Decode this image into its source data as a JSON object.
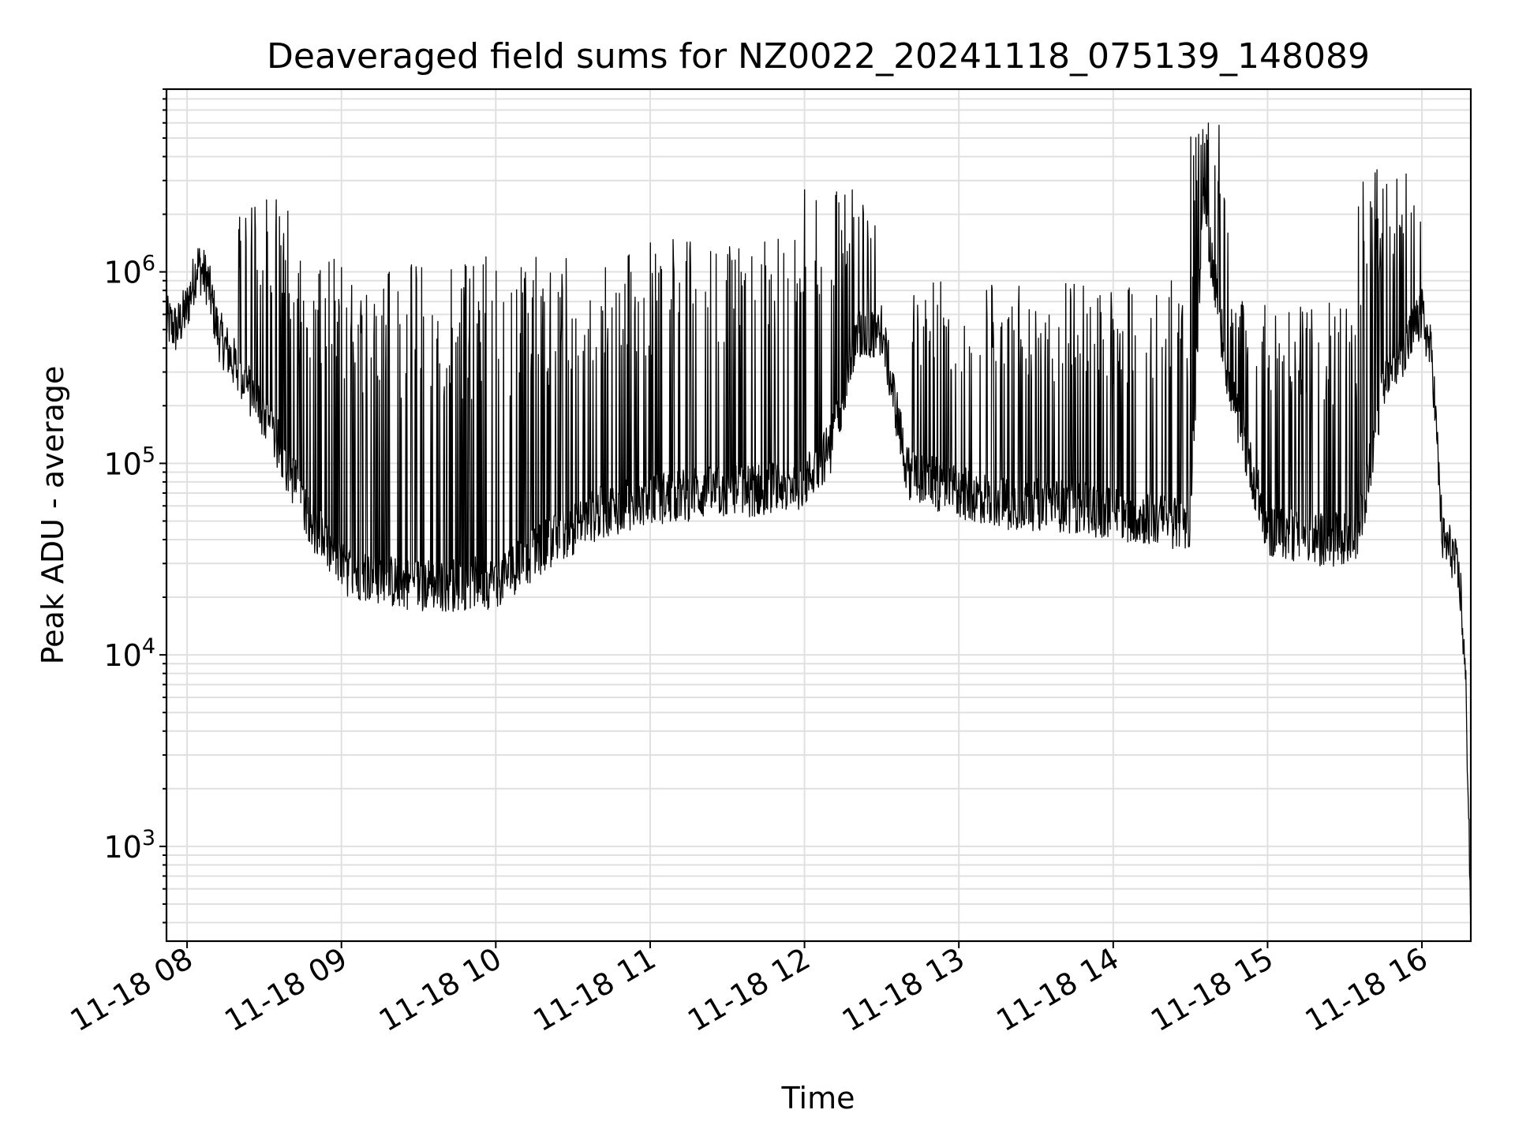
{
  "chart_data": {
    "type": "line",
    "title": "Deaveraged field sums for NZ0022_20241118_075139_148089",
    "xlabel": "Time",
    "ylabel": "Peak ADU - average",
    "yscale": "log",
    "ylim": [
      320,
      9000000
    ],
    "xlim": [
      "2024-11-18 07:52",
      "2024-11-18 16:19"
    ],
    "grid": true,
    "x_ticks": [
      {
        "value": "2024-11-18 08:00",
        "label": "11-18 08"
      },
      {
        "value": "2024-11-18 09:00",
        "label": "11-18 09"
      },
      {
        "value": "2024-11-18 10:00",
        "label": "11-18 10"
      },
      {
        "value": "2024-11-18 11:00",
        "label": "11-18 11"
      },
      {
        "value": "2024-11-18 12:00",
        "label": "11-18 12"
      },
      {
        "value": "2024-11-18 13:00",
        "label": "11-18 13"
      },
      {
        "value": "2024-11-18 14:00",
        "label": "11-18 14"
      },
      {
        "value": "2024-11-18 15:00",
        "label": "11-18 15"
      },
      {
        "value": "2024-11-18 16:00",
        "label": "11-18 16"
      }
    ],
    "y_ticks": [
      {
        "value": 1000,
        "base": "10",
        "exp": "3"
      },
      {
        "value": 10000,
        "base": "10",
        "exp": "4"
      },
      {
        "value": 100000,
        "base": "10",
        "exp": "5"
      },
      {
        "value": 1000000,
        "base": "10",
        "exp": "6"
      }
    ],
    "series": [
      {
        "color": "#000000",
        "baseline": {
          "x": [
            "2024-11-18 07:52",
            "2024-11-18 07:56",
            "2024-11-18 08:00",
            "2024-11-18 08:04",
            "2024-11-18 08:08",
            "2024-11-18 08:12",
            "2024-11-18 08:20",
            "2024-11-18 08:30",
            "2024-11-18 08:40",
            "2024-11-18 08:50",
            "2024-11-18 09:00",
            "2024-11-18 09:20",
            "2024-11-18 09:40",
            "2024-11-18 10:00",
            "2024-11-18 10:20",
            "2024-11-18 10:40",
            "2024-11-18 11:00",
            "2024-11-18 11:20",
            "2024-11-18 11:40",
            "2024-11-18 12:00",
            "2024-11-18 12:10",
            "2024-11-18 12:20",
            "2024-11-18 12:30",
            "2024-11-18 12:40",
            "2024-11-18 13:00",
            "2024-11-18 13:20",
            "2024-11-18 13:40",
            "2024-11-18 14:00",
            "2024-11-18 14:20",
            "2024-11-18 14:30",
            "2024-11-18 14:35",
            "2024-11-18 14:45",
            "2024-11-18 15:00",
            "2024-11-18 15:20",
            "2024-11-18 15:35",
            "2024-11-18 15:45",
            "2024-11-18 15:55",
            "2024-11-18 16:00",
            "2024-11-18 16:04",
            "2024-11-18 16:08",
            "2024-11-18 16:12",
            "2024-11-18 16:15",
            "2024-11-18 16:17",
            "2024-11-18 16:18",
            "2024-11-18 16:19"
          ],
          "y": [
            550000,
            500000,
            650000,
            1100000,
            900000,
            480000,
            300000,
            180000,
            90000,
            45000,
            28000,
            24000,
            23000,
            24000,
            38000,
            55000,
            65000,
            70000,
            72000,
            80000,
            120000,
            450000,
            500000,
            90000,
            70000,
            62000,
            60000,
            55000,
            50000,
            48000,
            2500000,
            250000,
            45000,
            40000,
            40000,
            250000,
            450000,
            600000,
            350000,
            40000,
            34000,
            22000,
            7000,
            2000,
            400
          ]
        },
        "spike_windows": [
          {
            "x": [
              "2024-11-18 08:20",
              "2024-11-18 08:40"
            ],
            "peak": 2400000
          },
          {
            "x": [
              "2024-11-18 08:40",
              "2024-11-18 10:30"
            ],
            "peak": 1200000
          },
          {
            "x": [
              "2024-11-18 10:30",
              "2024-11-18 12:00"
            ],
            "peak": 1500000
          },
          {
            "x": [
              "2024-11-18 12:00",
              "2024-11-18 12:30"
            ],
            "peak": 2800000
          },
          {
            "x": [
              "2024-11-18 12:40",
              "2024-11-18 14:30"
            ],
            "peak": 900000
          },
          {
            "x": [
              "2024-11-18 14:30",
              "2024-11-18 14:45"
            ],
            "peak": 6000000
          },
          {
            "x": [
              "2024-11-18 14:45",
              "2024-11-18 15:35"
            ],
            "peak": 700000
          },
          {
            "x": [
              "2024-11-18 15:35",
              "2024-11-18 16:00"
            ],
            "peak": 3500000
          }
        ]
      }
    ]
  }
}
